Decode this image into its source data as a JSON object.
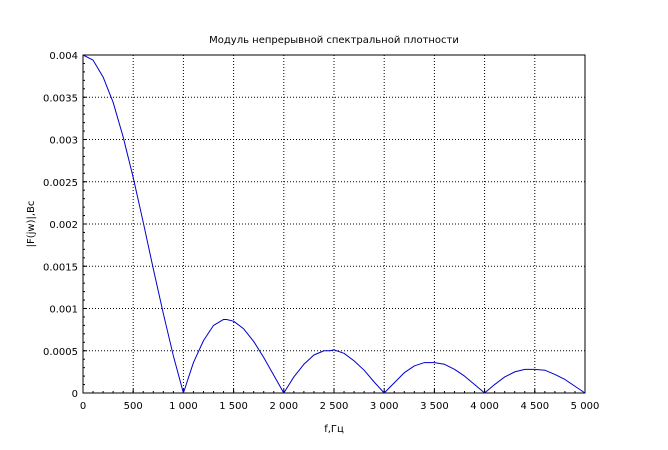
{
  "chart_data": {
    "type": "line",
    "title": "Модуль непрерывной спектральной плотности",
    "xlabel": "f,Гц",
    "ylabel": "|F(jw)|,Bc",
    "xlim": [
      0,
      5000
    ],
    "ylim": [
      0,
      0.004
    ],
    "grid": true,
    "x_ticks": [
      0,
      500,
      1000,
      1500,
      2000,
      2500,
      3000,
      3500,
      4000,
      4500,
      5000
    ],
    "x_tick_labels": [
      "0",
      "500",
      "1 000",
      "1 500",
      "2 000",
      "2 500",
      "3 000",
      "3 500",
      "4 000",
      "4 500",
      "5 000"
    ],
    "y_ticks": [
      0,
      0.0005,
      0.001,
      0.0015,
      0.002,
      0.0025,
      0.003,
      0.0035,
      0.004
    ],
    "y_tick_labels": [
      "0",
      "0.0005",
      "0.001",
      "0.0015",
      "0.002",
      "0.0025",
      "0.003",
      "0.0035",
      "0.004"
    ],
    "series": [
      {
        "color": "#0000cc",
        "x": [
          0,
          100,
          200,
          300,
          400,
          500,
          600,
          700,
          800,
          900,
          1000,
          1100,
          1200,
          1300,
          1400,
          1430,
          1500,
          1600,
          1700,
          1800,
          1900,
          2000,
          2100,
          2200,
          2300,
          2400,
          2460,
          2500,
          2600,
          2700,
          2800,
          2900,
          3000,
          3100,
          3200,
          3300,
          3400,
          3470,
          3500,
          3600,
          3700,
          3800,
          3900,
          4000,
          4100,
          4200,
          4300,
          4400,
          4480,
          4500,
          4600,
          4700,
          4800,
          4900,
          5000
        ],
        "y": [
          0.004,
          0.00394,
          0.00374,
          0.00344,
          0.00303,
          0.00255,
          0.00202,
          0.00147,
          0.00094,
          0.00044,
          0,
          0.00036,
          0.00062,
          0.0008,
          0.00087,
          0.00087,
          0.00085,
          0.00076,
          0.00061,
          0.00042,
          0.00021,
          0,
          0.00019,
          0.00034,
          0.00045,
          0.0005,
          0.0005,
          0.00051,
          0.00047,
          0.00038,
          0.00027,
          0.00013,
          0,
          0.00012,
          0.00024,
          0.00032,
          0.00036,
          0.00036,
          0.00036,
          0.00034,
          0.00028,
          0.0002,
          0.0001,
          0,
          0.0001,
          0.00019,
          0.00025,
          0.00028,
          0.00028,
          0.00028,
          0.00027,
          0.00022,
          0.00016,
          8e-05,
          0
        ]
      }
    ]
  }
}
